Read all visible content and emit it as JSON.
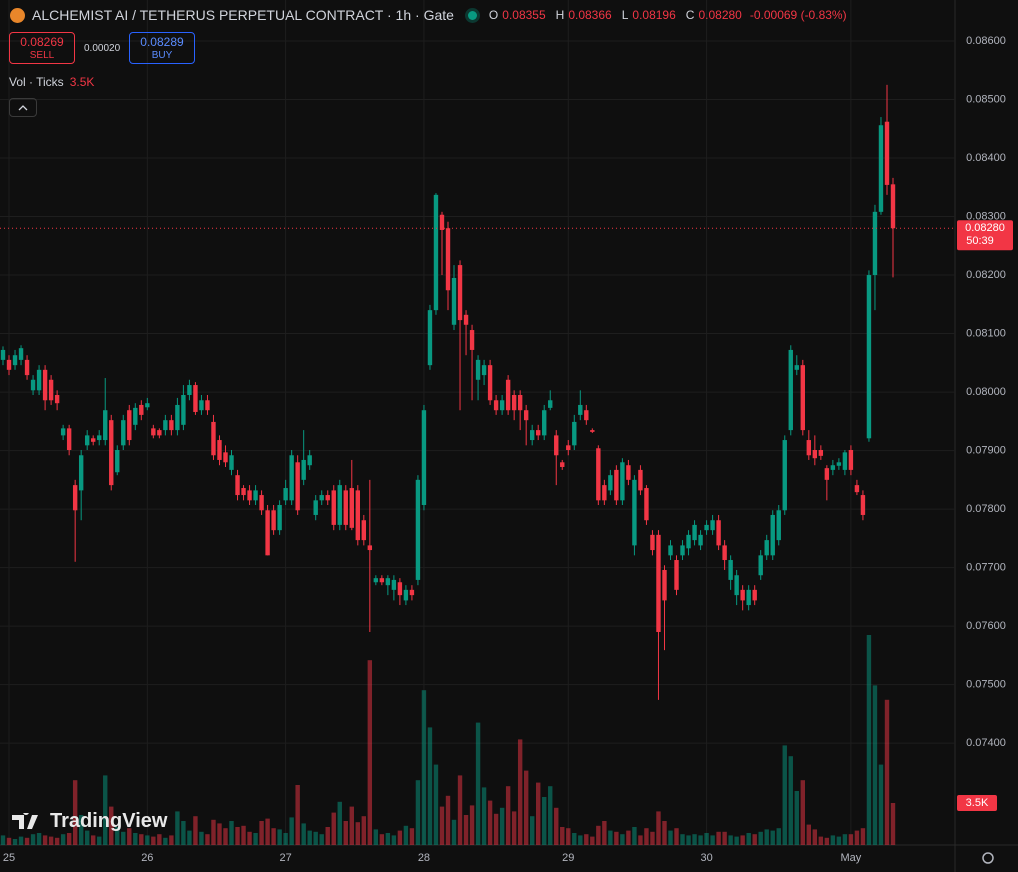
{
  "header": {
    "symbol": "ALCHEMIST AI / TETHERUS PERPETUAL CONTRACT · 1h · Gate",
    "o_label": "O",
    "open": "0.08355",
    "h_label": "H",
    "high": "0.08366",
    "l_label": "L",
    "low": "0.08196",
    "c_label": "C",
    "close": "0.08280",
    "change": "-0.00069 (-0.83%)"
  },
  "trade": {
    "sell_price": "0.08269",
    "sell": "SELL",
    "spread": "0.00020",
    "buy_price": "0.08289",
    "buy": "BUY"
  },
  "volume_legend": "Vol · Ticks",
  "watermark": "TradingView",
  "chart_data": {
    "type": "candlestick",
    "categories": [
      null,
      "25",
      null,
      null,
      null,
      null,
      null,
      null,
      null,
      null,
      null,
      null,
      null,
      null,
      null,
      null,
      null,
      null,
      null,
      null,
      null,
      null,
      null,
      null,
      "26",
      null,
      null,
      null,
      null,
      null,
      null,
      null,
      null,
      null,
      null,
      null,
      null,
      null,
      null,
      null,
      null,
      null,
      null,
      null,
      null,
      null,
      null,
      "27",
      null,
      null,
      null,
      null,
      null,
      null,
      null,
      null,
      null,
      null,
      null,
      null,
      null,
      null,
      null,
      null,
      null,
      null,
      null,
      null,
      null,
      null,
      "28",
      null,
      null,
      null,
      null,
      null,
      null,
      null,
      null,
      null,
      null,
      null,
      null,
      null,
      null,
      null,
      null,
      null,
      null,
      null,
      null,
      null,
      null,
      null,
      "29",
      null,
      null,
      null,
      null,
      null,
      null,
      null,
      null,
      null,
      null,
      null,
      null,
      null,
      null,
      null,
      null,
      null,
      null,
      null,
      null,
      null,
      null,
      "30",
      null,
      null,
      null,
      null,
      null,
      null,
      null,
      null,
      null,
      null,
      null,
      null,
      null,
      null,
      null,
      null,
      null,
      null,
      null,
      null,
      null,
      null,
      null,
      "May",
      null,
      null,
      null,
      null,
      null,
      null,
      null
    ],
    "open": [
      0.08055,
      0.08055,
      0.08046,
      0.08055,
      0.08055,
      0.08003,
      0.08003,
      0.08038,
      0.08021,
      0.07995,
      0.07926,
      0.07938,
      0.07841,
      0.07832,
      0.07909,
      0.07921,
      0.07918,
      0.07918,
      0.07952,
      0.07863,
      0.07909,
      0.07969,
      0.07944,
      0.07978,
      0.07974,
      0.07938,
      0.07935,
      0.07935,
      0.07952,
      0.07935,
      0.07944,
      0.07995,
      0.08012,
      0.07969,
      0.07986,
      0.07949,
      0.07918,
      0.07897,
      0.07867,
      0.07858,
      0.07836,
      0.07832,
      0.07815,
      0.07824,
      0.07798,
      0.07798,
      0.07764,
      0.07815,
      0.07815,
      0.0788,
      0.0785,
      0.07875,
      0.0779,
      0.07815,
      0.07824,
      0.07832,
      0.07773,
      0.07832,
      0.07836,
      0.07832,
      0.07781,
      0.07738,
      0.07675,
      0.07682,
      0.0767,
      0.07662,
      0.07675,
      0.07644,
      0.07662,
      0.07679,
      0.07807,
      0.08046,
      0.0814,
      0.08303,
      0.0828,
      0.08115,
      0.08217,
      0.08132,
      0.08106,
      0.08021,
      0.08029,
      0.08046,
      0.07986,
      0.07969,
      0.08021,
      0.07995,
      0.07995,
      0.07969,
      0.07918,
      0.07935,
      0.07926,
      0.07973,
      0.07926,
      0.0788,
      0.07909,
      0.07909,
      0.07961,
      0.07969,
      0.07935,
      0.07904,
      0.07841,
      0.07832,
      0.07867,
      0.07815,
      0.07875,
      0.07738,
      0.07867,
      0.07836,
      0.07756,
      0.07756,
      0.07696,
      0.07721,
      0.07713,
      0.07721,
      0.07733,
      0.07747,
      0.07738,
      0.07764,
      0.07764,
      0.07781,
      0.07738,
      0.07679,
      0.07653,
      0.07662,
      0.07636,
      0.07662,
      0.07687,
      0.07721,
      0.07721,
      0.07747,
      0.07798,
      0.07935,
      0.08038,
      0.08046,
      0.07918,
      0.07901,
      0.07901,
      0.0787,
      0.07867,
      0.07874,
      0.07867,
      0.07901,
      0.07841,
      0.07824,
      0.07921,
      0.082,
      0.08308,
      0.08462,
      0.08355
    ],
    "high": [
      0.08078,
      0.08063,
      0.08072,
      0.0808,
      0.08063,
      0.08029,
      0.08046,
      0.08046,
      0.08029,
      0.08003,
      0.07944,
      0.07944,
      0.0785,
      0.07901,
      0.07935,
      0.07926,
      0.07935,
      0.08024,
      0.07961,
      0.07909,
      0.07961,
      0.07978,
      0.07981,
      0.07986,
      0.0799,
      0.07944,
      0.07938,
      0.07961,
      0.07961,
      0.0799,
      0.08012,
      0.08021,
      0.08017,
      0.07995,
      0.07995,
      0.07961,
      0.07926,
      0.07909,
      0.07901,
      0.07867,
      0.07841,
      0.07841,
      0.07841,
      0.07832,
      0.07807,
      0.07807,
      0.07815,
      0.0785,
      0.07901,
      0.07892,
      0.07935,
      0.07901,
      0.07824,
      0.07832,
      0.07832,
      0.07841,
      0.0785,
      0.07841,
      0.07884,
      0.07841,
      0.0779,
      0.0785,
      0.07687,
      0.07687,
      0.07687,
      0.07687,
      0.07682,
      0.0767,
      0.0767,
      0.07858,
      0.07978,
      0.08149,
      0.0834,
      0.08308,
      0.08291,
      0.08217,
      0.08225,
      0.0814,
      0.08115,
      0.08063,
      0.08055,
      0.08055,
      0.07995,
      0.07995,
      0.08029,
      0.08003,
      0.08003,
      0.07978,
      0.07944,
      0.07944,
      0.07978,
      0.08003,
      0.07935,
      0.07884,
      0.07918,
      0.07961,
      0.08003,
      0.07978,
      0.07938,
      0.07909,
      0.0785,
      0.07867,
      0.07875,
      0.07887,
      0.07884,
      0.07858,
      0.07875,
      0.07841,
      0.07764,
      0.07764,
      0.07704,
      0.07747,
      0.07721,
      0.07747,
      0.07764,
      0.07781,
      0.07764,
      0.07781,
      0.0779,
      0.0779,
      0.07747,
      0.07721,
      0.07696,
      0.0767,
      0.0767,
      0.0767,
      0.0773,
      0.07756,
      0.07798,
      0.07807,
      0.07926,
      0.0808,
      0.08063,
      0.08055,
      0.07935,
      0.07926,
      0.07909,
      0.07875,
      0.07884,
      0.07887,
      0.07901,
      0.07909,
      0.0785,
      0.07832,
      0.08208,
      0.0832,
      0.0847,
      0.08525,
      0.08366
    ],
    "low": [
      0.08046,
      0.08029,
      0.08038,
      0.08046,
      0.08021,
      0.07995,
      0.07995,
      0.07969,
      0.07978,
      0.07969,
      0.07918,
      0.07892,
      0.0771,
      0.07781,
      0.07901,
      0.07909,
      0.07909,
      0.07909,
      0.07832,
      0.07858,
      0.07901,
      0.07909,
      0.07935,
      0.07952,
      0.07969,
      0.07921,
      0.07921,
      0.07926,
      0.07926,
      0.07926,
      0.07935,
      0.07986,
      0.07961,
      0.07961,
      0.07961,
      0.07884,
      0.07875,
      0.07872,
      0.07858,
      0.07815,
      0.07815,
      0.07807,
      0.07807,
      0.0779,
      0.07721,
      0.07756,
      0.07756,
      0.07807,
      0.07807,
      0.0779,
      0.07841,
      0.07867,
      0.07781,
      0.07807,
      0.07807,
      0.07764,
      0.07764,
      0.07764,
      0.07764,
      0.07738,
      0.07738,
      0.0759,
      0.0767,
      0.0767,
      0.07653,
      0.07644,
      0.07636,
      0.07636,
      0.07644,
      0.0767,
      0.07798,
      0.08038,
      0.08132,
      0.082,
      0.0814,
      0.08106,
      0.07969,
      0.08063,
      0.07986,
      0.07986,
      0.08012,
      0.07978,
      0.07961,
      0.07961,
      0.07961,
      0.07952,
      0.07935,
      0.07909,
      0.07909,
      0.07918,
      0.07918,
      0.07969,
      0.07841,
      0.07867,
      0.07892,
      0.07901,
      0.07952,
      0.07944,
      0.0793,
      0.07807,
      0.07807,
      0.07824,
      0.07807,
      0.07807,
      0.07841,
      0.07721,
      0.07824,
      0.07773,
      0.07721,
      0.07474,
      0.07559,
      0.07713,
      0.07653,
      0.07713,
      0.07721,
      0.07738,
      0.0773,
      0.07756,
      0.07756,
      0.0773,
      0.07696,
      0.07662,
      0.07636,
      0.07627,
      0.07627,
      0.07636,
      0.07679,
      0.07713,
      0.07713,
      0.07738,
      0.0779,
      0.07926,
      0.08029,
      0.07926,
      0.07884,
      0.07875,
      0.07884,
      0.07815,
      0.07858,
      0.07867,
      0.07858,
      0.07858,
      0.07824,
      0.07781,
      0.07915,
      0.0814,
      0.08303,
      0.08337,
      0.08196
    ],
    "close": [
      0.08072,
      0.08038,
      0.08063,
      0.08075,
      0.08029,
      0.08021,
      0.08038,
      0.07986,
      0.07986,
      0.07981,
      0.07938,
      0.07901,
      0.07798,
      0.07892,
      0.07926,
      0.07915,
      0.07926,
      0.07969,
      0.07841,
      0.07901,
      0.07952,
      0.07918,
      0.07973,
      0.07961,
      0.07981,
      0.07926,
      0.07926,
      0.07952,
      0.07935,
      0.07978,
      0.07995,
      0.08012,
      0.07966,
      0.07986,
      0.07969,
      0.07892,
      0.07884,
      0.0788,
      0.07892,
      0.07824,
      0.07824,
      0.07815,
      0.07832,
      0.07798,
      0.07721,
      0.07764,
      0.07807,
      0.07836,
      0.07892,
      0.07798,
      0.07884,
      0.07892,
      0.07815,
      0.07824,
      0.07815,
      0.07773,
      0.07841,
      0.07773,
      0.07768,
      0.07747,
      0.07747,
      0.0773,
      0.07682,
      0.07675,
      0.07682,
      0.07679,
      0.07653,
      0.07662,
      0.07653,
      0.0785,
      0.07969,
      0.0814,
      0.08337,
      0.08277,
      0.08174,
      0.08195,
      0.08123,
      0.08115,
      0.08072,
      0.08055,
      0.08046,
      0.07986,
      0.07969,
      0.07986,
      0.07969,
      0.07969,
      0.07969,
      0.07952,
      0.07935,
      0.07926,
      0.07969,
      0.07986,
      0.07892,
      0.07872,
      0.07901,
      0.07949,
      0.07978,
      0.07952,
      0.07932,
      0.07815,
      0.07815,
      0.07858,
      0.07815,
      0.0788,
      0.0785,
      0.0785,
      0.07832,
      0.07781,
      0.0773,
      0.0759,
      0.07644,
      0.07738,
      0.07662,
      0.07738,
      0.07756,
      0.07773,
      0.07756,
      0.07773,
      0.07781,
      0.07738,
      0.07713,
      0.07713,
      0.07687,
      0.07644,
      0.07662,
      0.07644,
      0.07721,
      0.07747,
      0.0779,
      0.07798,
      0.07918,
      0.08072,
      0.08046,
      0.07935,
      0.07892,
      0.07887,
      0.07891,
      0.0785,
      0.07875,
      0.0788,
      0.07897,
      0.07867,
      0.07829,
      0.0779,
      0.082,
      0.08308,
      0.08456,
      0.08354,
      0.0828
    ],
    "volume": [
      800,
      600,
      500,
      700,
      600,
      900,
      1000,
      800,
      700,
      600,
      900,
      1000,
      5400,
      2500,
      1200,
      800,
      700,
      5800,
      3200,
      1500,
      1100,
      1400,
      1000,
      900,
      800,
      700,
      900,
      600,
      800,
      2800,
      2000,
      1200,
      2400,
      1100,
      900,
      2100,
      1800,
      1400,
      2000,
      1500,
      1600,
      1100,
      1000,
      2000,
      2200,
      1400,
      1300,
      1000,
      2300,
      5000,
      1800,
      1200,
      1100,
      900,
      1500,
      2700,
      3600,
      2000,
      3200,
      1900,
      2400,
      15400,
      1300,
      900,
      1000,
      800,
      1200,
      1600,
      1400,
      5400,
      12900,
      9800,
      6700,
      3200,
      4100,
      2100,
      5800,
      2500,
      3300,
      10200,
      4800,
      3700,
      2600,
      3100,
      4900,
      2800,
      8800,
      6200,
      2400,
      5200,
      4000,
      4900,
      3100,
      1500,
      1400,
      1000,
      800,
      900,
      700,
      1600,
      2000,
      1200,
      1100,
      900,
      1200,
      1500,
      800,
      1400,
      1100,
      2800,
      2000,
      1200,
      1400,
      900,
      800,
      900,
      800,
      1000,
      800,
      1100,
      1100,
      800,
      700,
      800,
      1000,
      900,
      1100,
      1300,
      1200,
      1400,
      8300,
      7400,
      4500,
      5400,
      1700,
      1300,
      700,
      600,
      800,
      700,
      900,
      900,
      1200,
      1400,
      17500,
      13300,
      6700,
      12100,
      3500
    ],
    "up_color": "#089981",
    "down_color": "#f23645",
    "ylim": [
      0.07226,
      0.0867
    ],
    "yticks": [
      {
        "value": 0.086,
        "label": "0.08600"
      },
      {
        "value": 0.085,
        "label": "0.08500"
      },
      {
        "value": 0.084,
        "label": "0.08400"
      },
      {
        "value": 0.083,
        "label": "0.08300"
      },
      {
        "value": 0.082,
        "label": "0.08200"
      },
      {
        "value": 0.081,
        "label": "0.08100"
      },
      {
        "value": 0.08,
        "label": "0.08000"
      },
      {
        "value": 0.079,
        "label": "0.07900"
      },
      {
        "value": 0.078,
        "label": "0.07800"
      },
      {
        "value": 0.077,
        "label": "0.07700"
      },
      {
        "value": 0.076,
        "label": "0.07600"
      },
      {
        "value": 0.075,
        "label": "0.07500"
      },
      {
        "value": 0.074,
        "label": "0.07400"
      }
    ],
    "volume_ylim": [
      0,
      25000
    ],
    "last_price": {
      "value": 0.0828,
      "label": "0.08280"
    },
    "countdown": "50:39",
    "last_volume": {
      "value": 3500,
      "label": "3.5K"
    },
    "grid": true
  }
}
